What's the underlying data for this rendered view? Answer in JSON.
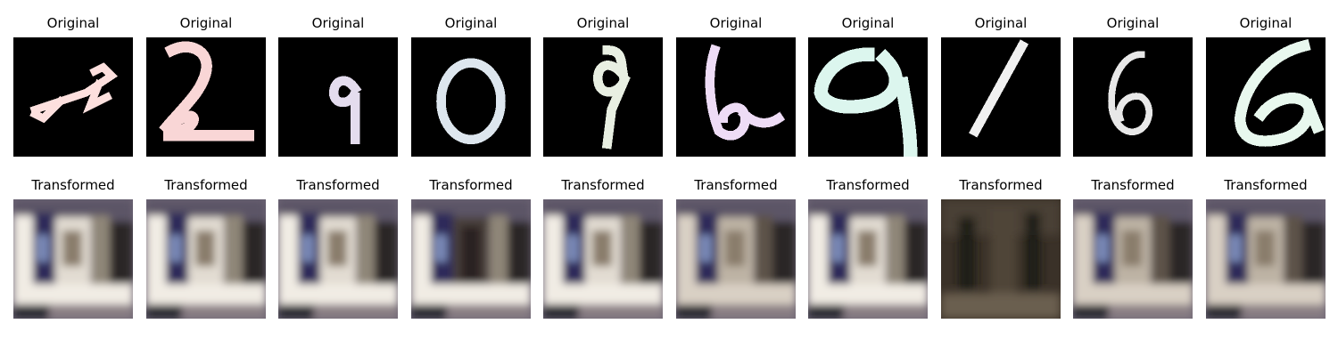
{
  "figure": {
    "rows": [
      {
        "id": "original",
        "panels": [
          {
            "title": "Original",
            "digit": "2",
            "tint": "#fde0de"
          },
          {
            "title": "Original",
            "digit": "2",
            "tint": "#f9d6d6"
          },
          {
            "title": "Original",
            "digit": "9",
            "tint": "#e4dcee"
          },
          {
            "title": "Original",
            "digit": "0",
            "tint": "#dde6ee"
          },
          {
            "title": "Original",
            "digit": "9",
            "tint": "#e8efe2"
          },
          {
            "title": "Original",
            "digit": "6",
            "tint": "#eedcf6"
          },
          {
            "title": "Original",
            "digit": "9",
            "tint": "#dcf6ee"
          },
          {
            "title": "Original",
            "digit": "1",
            "tint": "#f0f0f0"
          },
          {
            "title": "Original",
            "digit": "6",
            "tint": "#e8e8e8"
          },
          {
            "title": "Original",
            "digit": "6",
            "tint": "#e8f8ee"
          }
        ]
      },
      {
        "id": "transformed",
        "panels": [
          {
            "title": "Transformed",
            "tone": "bright"
          },
          {
            "title": "Transformed",
            "tone": "bright"
          },
          {
            "title": "Transformed",
            "tone": "bright"
          },
          {
            "title": "Transformed",
            "tone": "dark-center"
          },
          {
            "title": "Transformed",
            "tone": "bright"
          },
          {
            "title": "Transformed",
            "tone": "mid"
          },
          {
            "title": "Transformed",
            "tone": "bright"
          },
          {
            "title": "Transformed",
            "tone": "dark"
          },
          {
            "title": "Transformed",
            "tone": "mid"
          },
          {
            "title": "Transformed",
            "tone": "mid"
          }
        ]
      }
    ]
  }
}
